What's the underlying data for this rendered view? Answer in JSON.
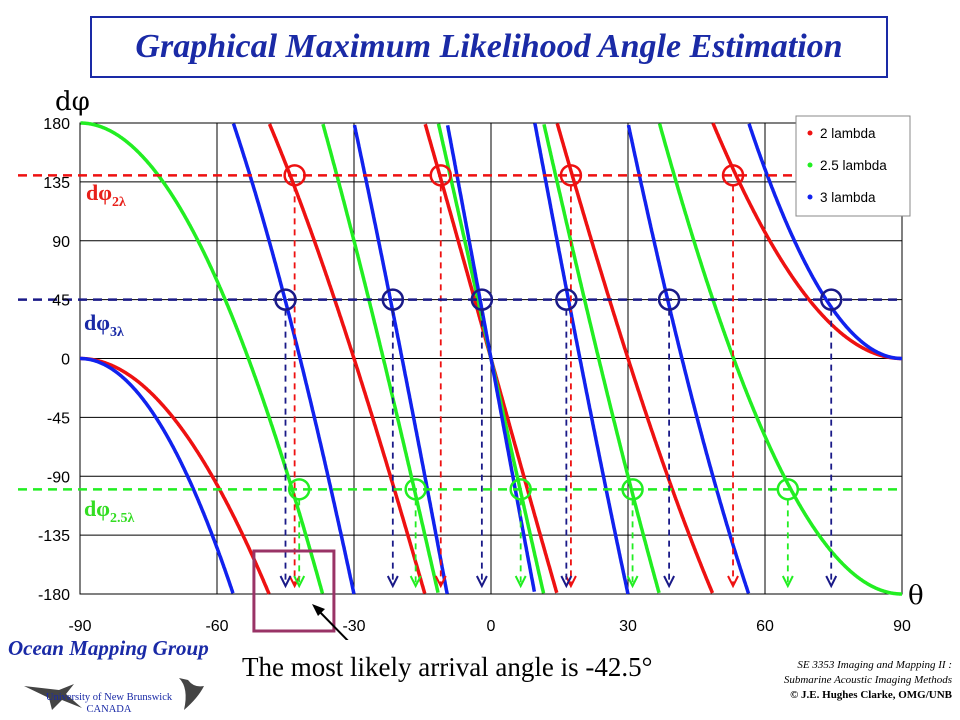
{
  "title": "Graphical Maximum Likelihood Angle Estimation",
  "logo": {
    "name": "Ocean Mapping Group",
    "university_line1": "University of New Brunswick",
    "university_line2": "CANADA"
  },
  "conclusion": "The most likely arrival angle is -42.5°",
  "course": {
    "line1": "SE 3353 Imaging and Mapping II :",
    "line2": "Submarine Acoustic Imaging Methods",
    "line3": "© J.E. Hughes Clarke, OMG/UNB"
  },
  "annotations": {
    "dphi_2": {
      "symbol": "dφ",
      "subscript": "2λ",
      "color": "#e8201a"
    },
    "dphi_3": {
      "symbol": "dφ",
      "subscript": "3λ",
      "color": "#1a2aa6"
    },
    "dphi_25": {
      "symbol": "dφ",
      "subscript": "2.5λ",
      "color": "#33dd22"
    }
  },
  "colors": {
    "red": "#ee1111",
    "green": "#22ee22",
    "blue": "#1122ee",
    "navy": "#1a1a88",
    "box": "#993366"
  },
  "chart_data": {
    "type": "line",
    "xlabel": "θ",
    "ylabel": "dφ",
    "xlim": [
      -90,
      90
    ],
    "ylim": [
      -180,
      180
    ],
    "x_ticks": [
      "-90",
      "-60",
      "-30",
      "0",
      "30",
      "60",
      "90"
    ],
    "y_ticks": [
      "180",
      "135",
      "90",
      "45",
      "0",
      "-45",
      "-90",
      "-135",
      "-180"
    ],
    "x_tick_values": [
      -90,
      -60,
      -30,
      0,
      30,
      60,
      90
    ],
    "y_tick_values": [
      180,
      135,
      90,
      45,
      0,
      -45,
      -90,
      -135,
      -180
    ],
    "grid": true,
    "legend_position": "top-right",
    "series": [
      {
        "name": "2 lambda",
        "spacing_wavelengths": 2,
        "color": "#ee1111"
      },
      {
        "name": "2.5 lambda",
        "spacing_wavelengths": 2.5,
        "color": "#22ee22"
      },
      {
        "name": "3 lambda",
        "spacing_wavelengths": 3,
        "color": "#1122ee"
      }
    ],
    "measured_phase": {
      "2 lambda": 140,
      "2.5 lambda": -100,
      "3 lambda": 45
    },
    "candidate_angles": {
      "2 lambda": [
        -43,
        -11,
        17.5,
        53
      ],
      "2.5 lambda": [
        -42,
        -16.5,
        6.5,
        31,
        65
      ],
      "3 lambda": [
        -45,
        -21.5,
        -2,
        16.5,
        39,
        74.5
      ]
    },
    "most_likely_angle": -42.5
  }
}
